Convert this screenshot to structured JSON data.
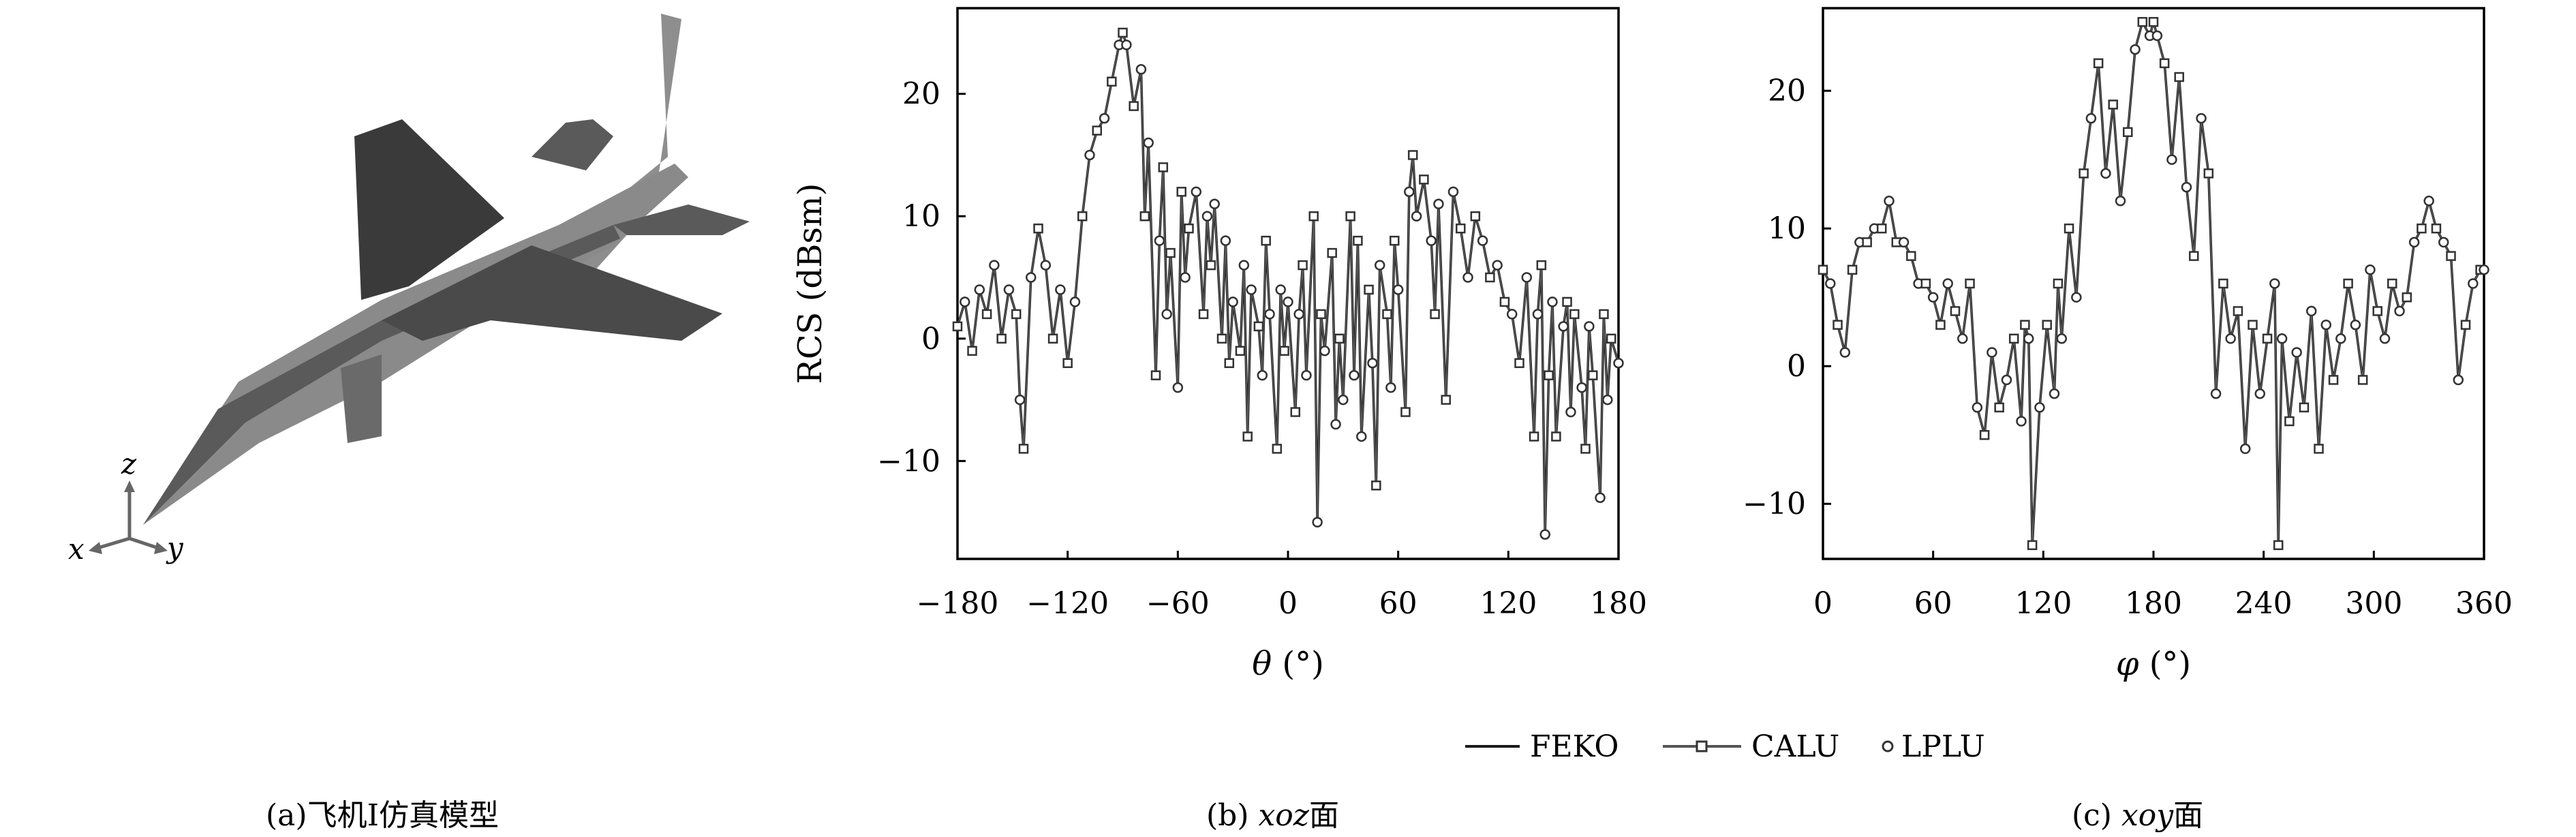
{
  "captions": {
    "a": "(a)飞机I仿真模型",
    "b_prefix": "(b) ",
    "b_italic": "xoz",
    "b_suffix": "面",
    "c_prefix": "(c) ",
    "c_italic": "xoy",
    "c_suffix": "面"
  },
  "model_axes": {
    "x": "x",
    "y": "y",
    "z": "z"
  },
  "legend": [
    {
      "label": "FEKO",
      "marker": "line"
    },
    {
      "label": "CALU",
      "marker": "square-line"
    },
    {
      "label": "LPLU",
      "marker": "circle"
    }
  ],
  "colors": {
    "line": "#1a1a1a",
    "axis": "#000000",
    "plane_dark": "#3a3a3a",
    "plane_mid": "#6e6e6e",
    "plane_light": "#9a9a9a"
  },
  "chart_data": [
    {
      "type": "line",
      "xlabel_symbol": "θ",
      "xlabel_unit": "(°)",
      "ylabel": "RCS (dBsm)",
      "xlim": [
        -180,
        180
      ],
      "ylim": [
        -18,
        27
      ],
      "xticks": [
        -180,
        -120,
        -60,
        0,
        60,
        120,
        180
      ],
      "xtick_labels": [
        "−180",
        "−120",
        "−60",
        "0",
        "60",
        "120",
        "180"
      ],
      "yticks": [
        -10,
        0,
        10,
        20
      ],
      "ytick_labels": [
        "−10",
        "0",
        "10",
        "20"
      ],
      "series_names": [
        "FEKO",
        "CALU",
        "LPLU"
      ],
      "x": [
        -180,
        -176,
        -172,
        -168,
        -164,
        -160,
        -156,
        -152,
        -148,
        -146,
        -144,
        -140,
        -136,
        -132,
        -128,
        -124,
        -120,
        -116,
        -112,
        -108,
        -104,
        -100,
        -96,
        -92,
        -90,
        -88,
        -84,
        -80,
        -78,
        -76,
        -72,
        -70,
        -68,
        -66,
        -64,
        -60,
        -58,
        -56,
        -54,
        -50,
        -46,
        -44,
        -42,
        -40,
        -36,
        -34,
        -32,
        -30,
        -26,
        -24,
        -22,
        -20,
        -16,
        -14,
        -12,
        -10,
        -6,
        -4,
        -2,
        0,
        4,
        6,
        8,
        10,
        14,
        16,
        18,
        20,
        24,
        26,
        28,
        30,
        34,
        36,
        38,
        40,
        44,
        46,
        48,
        50,
        54,
        56,
        58,
        60,
        64,
        66,
        68,
        70,
        74,
        78,
        80,
        82,
        86,
        90,
        94,
        98,
        102,
        106,
        110,
        114,
        118,
        122,
        126,
        130,
        134,
        136,
        138,
        140,
        142,
        144,
        146,
        150,
        152,
        154,
        156,
        160,
        162,
        164,
        166,
        170,
        172,
        174,
        176,
        180
      ],
      "values": [
        1,
        3,
        -1,
        4,
        2,
        6,
        0,
        4,
        2,
        -5,
        -9,
        5,
        9,
        6,
        0,
        4,
        -2,
        3,
        10,
        15,
        17,
        18,
        21,
        24,
        25,
        24,
        19,
        22,
        10,
        16,
        -3,
        8,
        14,
        2,
        7,
        -4,
        12,
        5,
        9,
        12,
        2,
        10,
        6,
        11,
        0,
        8,
        -2,
        3,
        -1,
        6,
        -8,
        4,
        1,
        -3,
        8,
        2,
        -9,
        4,
        -1,
        3,
        -6,
        2,
        6,
        -3,
        10,
        -15,
        2,
        -1,
        7,
        -7,
        0,
        -5,
        10,
        -3,
        8,
        -8,
        4,
        -2,
        -12,
        6,
        2,
        -4,
        8,
        4,
        -6,
        12,
        15,
        10,
        13,
        8,
        2,
        11,
        -5,
        12,
        9,
        5,
        10,
        8,
        5,
        6,
        3,
        2,
        -2,
        5,
        -8,
        2,
        6,
        -16,
        -3,
        3,
        -8,
        1,
        3,
        -6,
        2,
        -4,
        -9,
        1,
        -3,
        -13,
        2,
        -5,
        0,
        -2
      ]
    },
    {
      "type": "line",
      "xlabel_symbol": "φ",
      "xlabel_unit": "(°)",
      "ylabel": "",
      "xlim": [
        0,
        360
      ],
      "ylim": [
        -14,
        26
      ],
      "xticks": [
        0,
        60,
        120,
        180,
        240,
        300,
        360
      ],
      "xtick_labels": [
        "0",
        "60",
        "120",
        "180",
        "240",
        "300",
        "360"
      ],
      "yticks": [
        -10,
        0,
        10,
        20
      ],
      "ytick_labels": [
        "−10",
        "0",
        "10",
        "20"
      ],
      "series_names": [
        "FEKO",
        "CALU",
        "LPLU"
      ],
      "x": [
        0,
        4,
        8,
        12,
        16,
        20,
        24,
        28,
        32,
        36,
        40,
        44,
        48,
        52,
        56,
        60,
        64,
        68,
        72,
        76,
        80,
        84,
        88,
        92,
        96,
        100,
        104,
        108,
        110,
        112,
        114,
        118,
        122,
        126,
        128,
        130,
        134,
        138,
        142,
        146,
        150,
        154,
        158,
        162,
        166,
        170,
        174,
        178,
        180,
        182,
        186,
        190,
        194,
        198,
        202,
        206,
        210,
        214,
        218,
        222,
        226,
        230,
        234,
        238,
        242,
        246,
        248,
        250,
        254,
        258,
        262,
        266,
        270,
        274,
        278,
        282,
        286,
        290,
        294,
        298,
        302,
        306,
        310,
        314,
        318,
        322,
        326,
        330,
        334,
        338,
        342,
        346,
        350,
        354,
        358,
        360
      ],
      "values": [
        7,
        6,
        3,
        1,
        7,
        9,
        9,
        10,
        10,
        12,
        9,
        9,
        8,
        6,
        6,
        5,
        3,
        6,
        4,
        2,
        6,
        -3,
        -5,
        1,
        -3,
        -1,
        2,
        -4,
        3,
        2,
        -13,
        -3,
        3,
        -2,
        6,
        2,
        10,
        5,
        14,
        18,
        22,
        14,
        19,
        12,
        17,
        23,
        25,
        24,
        25,
        24,
        22,
        15,
        21,
        13,
        8,
        18,
        14,
        -2,
        6,
        2,
        4,
        -6,
        3,
        -2,
        2,
        6,
        -13,
        2,
        -4,
        1,
        -3,
        4,
        -6,
        3,
        -1,
        2,
        6,
        3,
        -1,
        7,
        4,
        2,
        6,
        4,
        5,
        9,
        10,
        12,
        10,
        9,
        8,
        -1,
        3,
        6,
        7,
        7
      ]
    }
  ]
}
